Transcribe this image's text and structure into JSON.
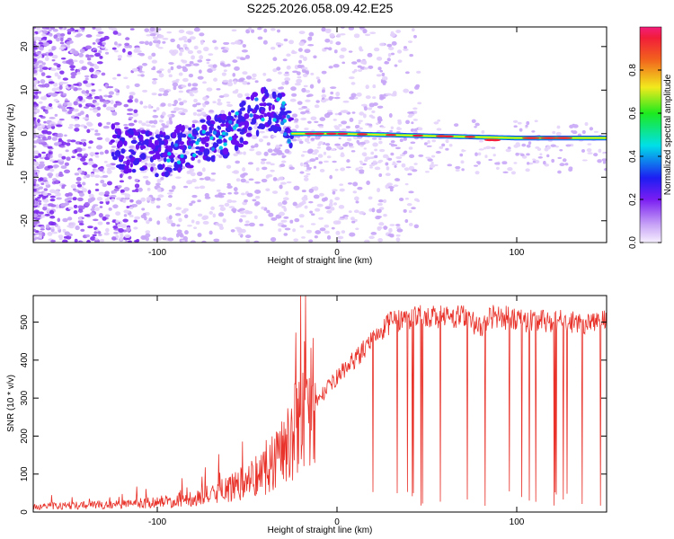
{
  "title": "S225.2026.058.09.42.E25",
  "chart_data": [
    {
      "type": "heatmap",
      "name": "spectrogram",
      "xlabel": "Height of straight line (km)",
      "ylabel": "Frequency (Hz)",
      "xlim": [
        -169,
        150
      ],
      "ylim": [
        -25,
        24.5
      ],
      "xticks": [
        -100,
        0,
        100
      ],
      "yticks": [
        -20,
        -10,
        0,
        10,
        20
      ],
      "colorbar": {
        "label": "Normalized spectral amplitude",
        "range": [
          0,
          1
        ],
        "ticks": [
          "0.0",
          "0.2",
          "0.4",
          "0.6",
          "0.8"
        ]
      },
      "ridge": [
        {
          "height": -169,
          "freq": 0
        },
        {
          "height": -100,
          "freq": -5
        },
        {
          "height": -60,
          "freq": 0
        },
        {
          "height": -40,
          "freq": 6
        },
        {
          "height": -30,
          "freq": 4
        },
        {
          "height": -25,
          "freq": 0
        },
        {
          "height": 0,
          "freq": 0
        },
        {
          "height": 100,
          "freq": -1
        },
        {
          "height": 150,
          "freq": -1
        }
      ]
    },
    {
      "type": "line",
      "name": "snr",
      "xlabel": "Height of straight line (km)",
      "ylabel": "SNR (10 * v/v)",
      "xlim": [
        -169,
        150
      ],
      "ylim": [
        0,
        570
      ],
      "xticks": [
        -100,
        0,
        100
      ],
      "yticks": [
        0,
        100,
        200,
        300,
        400,
        500
      ],
      "color": "#e8322a",
      "envelope": [
        {
          "height": -169,
          "snr": 15
        },
        {
          "height": -120,
          "snr": 20
        },
        {
          "height": -90,
          "snr": 30
        },
        {
          "height": -70,
          "snr": 45
        },
        {
          "height": -55,
          "snr": 70
        },
        {
          "height": -40,
          "snr": 110
        },
        {
          "height": -25,
          "snr": 200
        },
        {
          "height": -12,
          "snr": 300
        },
        {
          "height": 0,
          "snr": 370
        },
        {
          "height": 10,
          "snr": 420
        },
        {
          "height": 22,
          "snr": 480
        },
        {
          "height": 30,
          "snr": 520
        },
        {
          "height": 40,
          "snr": 535
        },
        {
          "height": 70,
          "snr": 535
        },
        {
          "height": 80,
          "snr": 510
        },
        {
          "height": 88,
          "snr": 540
        },
        {
          "height": 100,
          "snr": 525
        },
        {
          "height": 150,
          "snr": 520
        }
      ]
    }
  ]
}
